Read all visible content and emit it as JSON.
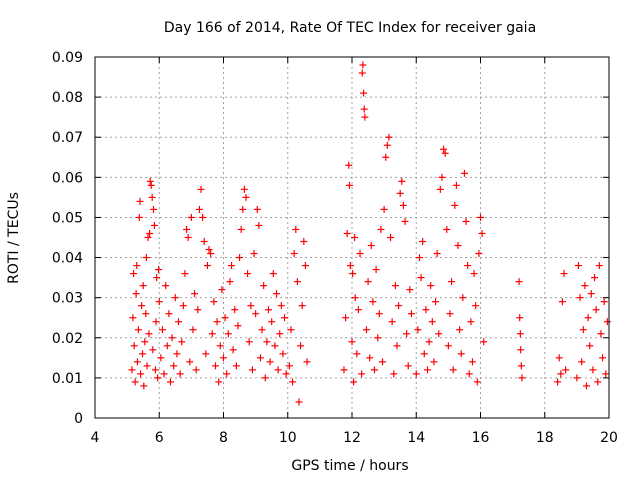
{
  "chart_data": {
    "type": "scatter",
    "title": "Day 166 of 2014, Rate Of TEC Index for receiver gaia",
    "xlabel": "GPS time / hours",
    "ylabel": "ROTI / TECUs",
    "xlim": [
      4,
      20
    ],
    "ylim": [
      0,
      0.09
    ],
    "grid": true,
    "xticks": [
      4,
      6,
      8,
      10,
      12,
      14,
      16,
      18,
      20
    ],
    "xtick_labels": [
      "4",
      "6",
      "8",
      "10",
      "12",
      "14",
      "16",
      "18",
      "20"
    ],
    "yticks": [
      0,
      0.01,
      0.02,
      0.03,
      0.04,
      0.05,
      0.06,
      0.07,
      0.08,
      0.09
    ],
    "ytick_labels": [
      "0",
      "0.01",
      "0.02",
      "0.03",
      "0.04",
      "0.05",
      "0.06",
      "0.07",
      "0.08",
      "0.09"
    ],
    "marker_color": "#ff0000",
    "marker": "+",
    "series": [
      {
        "name": "ROTI",
        "points": [
          [
            5.15,
            0.012
          ],
          [
            5.18,
            0.025
          ],
          [
            5.2,
            0.036
          ],
          [
            5.22,
            0.018
          ],
          [
            5.25,
            0.009
          ],
          [
            5.28,
            0.031
          ],
          [
            5.3,
            0.038
          ],
          [
            5.32,
            0.014
          ],
          [
            5.35,
            0.022
          ],
          [
            5.38,
            0.05
          ],
          [
            5.4,
            0.054
          ],
          [
            5.42,
            0.011
          ],
          [
            5.45,
            0.028
          ],
          [
            5.48,
            0.016
          ],
          [
            5.5,
            0.033
          ],
          [
            5.52,
            0.008
          ],
          [
            5.55,
            0.019
          ],
          [
            5.58,
            0.026
          ],
          [
            5.6,
            0.04
          ],
          [
            5.62,
            0.013
          ],
          [
            5.65,
            0.045
          ],
          [
            5.68,
            0.021
          ],
          [
            5.7,
            0.046
          ],
          [
            5.72,
            0.059
          ],
          [
            5.75,
            0.058
          ],
          [
            5.78,
            0.055
          ],
          [
            5.8,
            0.017
          ],
          [
            5.82,
            0.052
          ],
          [
            5.85,
            0.048
          ],
          [
            5.88,
            0.012
          ],
          [
            5.9,
            0.024
          ],
          [
            5.92,
            0.035
          ],
          [
            5.95,
            0.01
          ],
          [
            5.98,
            0.037
          ],
          [
            6.0,
            0.029
          ],
          [
            6.05,
            0.015
          ],
          [
            6.1,
            0.022
          ],
          [
            6.15,
            0.011
          ],
          [
            6.2,
            0.033
          ],
          [
            6.25,
            0.018
          ],
          [
            6.3,
            0.026
          ],
          [
            6.35,
            0.009
          ],
          [
            6.4,
            0.02
          ],
          [
            6.45,
            0.013
          ],
          [
            6.5,
            0.03
          ],
          [
            6.55,
            0.016
          ],
          [
            6.6,
            0.024
          ],
          [
            6.65,
            0.011
          ],
          [
            6.7,
            0.019
          ],
          [
            6.75,
            0.028
          ],
          [
            6.8,
            0.036
          ],
          [
            6.85,
            0.047
          ],
          [
            6.9,
            0.045
          ],
          [
            6.95,
            0.014
          ],
          [
            7.0,
            0.05
          ],
          [
            7.05,
            0.022
          ],
          [
            7.1,
            0.031
          ],
          [
            7.15,
            0.012
          ],
          [
            7.2,
            0.027
          ],
          [
            7.25,
            0.052
          ],
          [
            7.3,
            0.057
          ],
          [
            7.35,
            0.05
          ],
          [
            7.4,
            0.044
          ],
          [
            7.45,
            0.016
          ],
          [
            7.5,
            0.038
          ],
          [
            7.55,
            0.042
          ],
          [
            7.6,
            0.041
          ],
          [
            7.65,
            0.021
          ],
          [
            7.7,
            0.029
          ],
          [
            7.75,
            0.013
          ],
          [
            7.8,
            0.024
          ],
          [
            7.85,
            0.009
          ],
          [
            7.9,
            0.018
          ],
          [
            7.95,
            0.032
          ],
          [
            8.0,
            0.015
          ],
          [
            8.05,
            0.025
          ],
          [
            8.1,
            0.011
          ],
          [
            8.15,
            0.021
          ],
          [
            8.2,
            0.034
          ],
          [
            8.25,
            0.038
          ],
          [
            8.3,
            0.017
          ],
          [
            8.35,
            0.027
          ],
          [
            8.4,
            0.013
          ],
          [
            8.45,
            0.023
          ],
          [
            8.5,
            0.04
          ],
          [
            8.55,
            0.047
          ],
          [
            8.6,
            0.052
          ],
          [
            8.65,
            0.057
          ],
          [
            8.7,
            0.055
          ],
          [
            8.75,
            0.036
          ],
          [
            8.8,
            0.019
          ],
          [
            8.85,
            0.028
          ],
          [
            8.9,
            0.012
          ],
          [
            8.95,
            0.041
          ],
          [
            9.0,
            0.026
          ],
          [
            9.05,
            0.052
          ],
          [
            9.1,
            0.048
          ],
          [
            9.15,
            0.015
          ],
          [
            9.2,
            0.022
          ],
          [
            9.25,
            0.033
          ],
          [
            9.3,
            0.01
          ],
          [
            9.35,
            0.019
          ],
          [
            9.4,
            0.027
          ],
          [
            9.45,
            0.014
          ],
          [
            9.5,
            0.024
          ],
          [
            9.55,
            0.036
          ],
          [
            9.6,
            0.018
          ],
          [
            9.65,
            0.031
          ],
          [
            9.7,
            0.012
          ],
          [
            9.75,
            0.021
          ],
          [
            9.8,
            0.028
          ],
          [
            9.85,
            0.016
          ],
          [
            9.9,
            0.025
          ],
          [
            9.95,
            0.011
          ],
          [
            10.05,
            0.013
          ],
          [
            10.1,
            0.022
          ],
          [
            10.15,
            0.009
          ],
          [
            10.2,
            0.041
          ],
          [
            10.25,
            0.047
          ],
          [
            10.3,
            0.034
          ],
          [
            10.35,
            0.004
          ],
          [
            10.4,
            0.018
          ],
          [
            10.45,
            0.028
          ],
          [
            10.5,
            0.044
          ],
          [
            10.55,
            0.038
          ],
          [
            10.6,
            0.014
          ],
          [
            11.75,
            0.012
          ],
          [
            11.8,
            0.025
          ],
          [
            11.85,
            0.046
          ],
          [
            11.9,
            0.063
          ],
          [
            11.92,
            0.058
          ],
          [
            11.95,
            0.038
          ],
          [
            12.0,
            0.019
          ],
          [
            12.02,
            0.036
          ],
          [
            12.05,
            0.009
          ],
          [
            12.08,
            0.045
          ],
          [
            12.1,
            0.03
          ],
          [
            12.15,
            0.016
          ],
          [
            12.2,
            0.027
          ],
          [
            12.25,
            0.041
          ],
          [
            12.3,
            0.011
          ],
          [
            12.32,
            0.086
          ],
          [
            12.34,
            0.088
          ],
          [
            12.36,
            0.081
          ],
          [
            12.38,
            0.077
          ],
          [
            12.4,
            0.075
          ],
          [
            12.45,
            0.022
          ],
          [
            12.5,
            0.034
          ],
          [
            12.55,
            0.015
          ],
          [
            12.6,
            0.043
          ],
          [
            12.65,
            0.029
          ],
          [
            12.7,
            0.012
          ],
          [
            12.75,
            0.037
          ],
          [
            12.8,
            0.02
          ],
          [
            12.85,
            0.026
          ],
          [
            12.9,
            0.047
          ],
          [
            12.95,
            0.014
          ],
          [
            13.0,
            0.052
          ],
          [
            13.05,
            0.065
          ],
          [
            13.1,
            0.068
          ],
          [
            13.15,
            0.07
          ],
          [
            13.2,
            0.045
          ],
          [
            13.25,
            0.024
          ],
          [
            13.3,
            0.011
          ],
          [
            13.35,
            0.033
          ],
          [
            13.4,
            0.018
          ],
          [
            13.45,
            0.028
          ],
          [
            13.5,
            0.056
          ],
          [
            13.55,
            0.059
          ],
          [
            13.6,
            0.053
          ],
          [
            13.65,
            0.049
          ],
          [
            13.7,
            0.021
          ],
          [
            13.75,
            0.013
          ],
          [
            13.8,
            0.032
          ],
          [
            13.85,
            0.026
          ],
          [
            14.0,
            0.011
          ],
          [
            14.05,
            0.022
          ],
          [
            14.1,
            0.04
          ],
          [
            14.15,
            0.035
          ],
          [
            14.2,
            0.044
          ],
          [
            14.25,
            0.016
          ],
          [
            14.3,
            0.027
          ],
          [
            14.35,
            0.012
          ],
          [
            14.4,
            0.019
          ],
          [
            14.45,
            0.033
          ],
          [
            14.5,
            0.024
          ],
          [
            14.55,
            0.014
          ],
          [
            14.6,
            0.029
          ],
          [
            14.65,
            0.041
          ],
          [
            14.7,
            0.021
          ],
          [
            14.75,
            0.057
          ],
          [
            14.8,
            0.06
          ],
          [
            14.85,
            0.067
          ],
          [
            14.9,
            0.066
          ],
          [
            14.95,
            0.047
          ],
          [
            15.0,
            0.018
          ],
          [
            15.05,
            0.026
          ],
          [
            15.1,
            0.034
          ],
          [
            15.15,
            0.012
          ],
          [
            15.2,
            0.053
          ],
          [
            15.25,
            0.058
          ],
          [
            15.3,
            0.043
          ],
          [
            15.35,
            0.022
          ],
          [
            15.4,
            0.016
          ],
          [
            15.45,
            0.03
          ],
          [
            15.5,
            0.061
          ],
          [
            15.55,
            0.049
          ],
          [
            15.6,
            0.038
          ],
          [
            15.65,
            0.011
          ],
          [
            15.7,
            0.024
          ],
          [
            15.75,
            0.014
          ],
          [
            15.8,
            0.036
          ],
          [
            15.85,
            0.028
          ],
          [
            15.9,
            0.009
          ],
          [
            15.95,
            0.041
          ],
          [
            16.0,
            0.05
          ],
          [
            16.05,
            0.046
          ],
          [
            16.1,
            0.019
          ],
          [
            17.2,
            0.034
          ],
          [
            17.22,
            0.025
          ],
          [
            17.24,
            0.021
          ],
          [
            17.25,
            0.017
          ],
          [
            17.27,
            0.013
          ],
          [
            17.29,
            0.01
          ],
          [
            18.4,
            0.009
          ],
          [
            18.45,
            0.015
          ],
          [
            18.5,
            0.011
          ],
          [
            18.55,
            0.029
          ],
          [
            18.6,
            0.036
          ],
          [
            18.65,
            0.012
          ],
          [
            19.0,
            0.01
          ],
          [
            19.05,
            0.038
          ],
          [
            19.1,
            0.03
          ],
          [
            19.15,
            0.014
          ],
          [
            19.2,
            0.022
          ],
          [
            19.25,
            0.033
          ],
          [
            19.3,
            0.008
          ],
          [
            19.35,
            0.025
          ],
          [
            19.4,
            0.018
          ],
          [
            19.45,
            0.031
          ],
          [
            19.5,
            0.012
          ],
          [
            19.55,
            0.035
          ],
          [
            19.6,
            0.027
          ],
          [
            19.65,
            0.009
          ],
          [
            19.7,
            0.038
          ],
          [
            19.75,
            0.021
          ],
          [
            19.8,
            0.015
          ],
          [
            19.85,
            0.029
          ],
          [
            19.9,
            0.011
          ],
          [
            19.95,
            0.024
          ]
        ]
      }
    ]
  }
}
